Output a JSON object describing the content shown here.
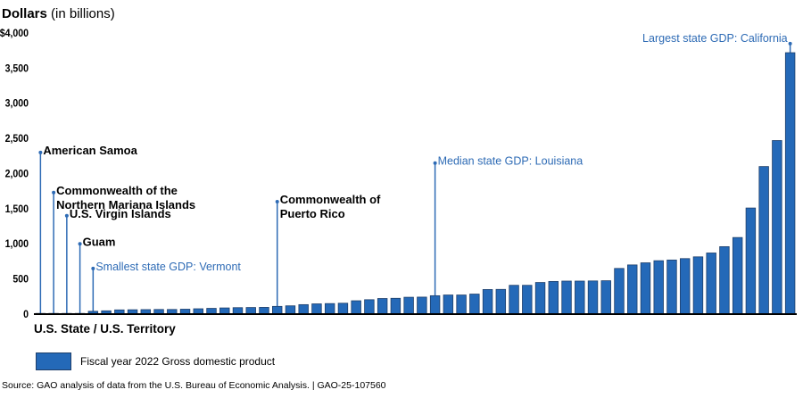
{
  "chart_data": {
    "type": "bar",
    "title_bold": "Dollars",
    "title_rest": " (in billions)",
    "xlabel": "U.S. State / U.S. Territory",
    "ylabel": "Dollars (in billions)",
    "ylim": [
      0,
      4000
    ],
    "yticks": [
      {
        "value": 4000,
        "label": "$4,000"
      },
      {
        "value": 3500,
        "label": "3,500"
      },
      {
        "value": 3000,
        "label": "3,000"
      },
      {
        "value": 2500,
        "label": "2,500"
      },
      {
        "value": 2000,
        "label": "2,000"
      },
      {
        "value": 1500,
        "label": "1,500"
      },
      {
        "value": 1000,
        "label": "1,000"
      },
      {
        "value": 500,
        "label": "500"
      },
      {
        "value": 0,
        "label": "0"
      }
    ],
    "grid": false,
    "legend_position": "bottom-left",
    "series": [
      {
        "name": "Fiscal year 2022 Gross domestic product",
        "color": "#2469b8",
        "values": [
          1,
          1,
          4,
          6,
          40,
          47,
          60,
          62,
          64,
          66,
          66,
          70,
          76,
          82,
          88,
          92,
          94,
          96,
          110,
          118,
          135,
          146,
          150,
          155,
          190,
          205,
          222,
          225,
          240,
          242,
          262,
          272,
          272,
          285,
          350,
          352,
          410,
          410,
          450,
          465,
          470,
          470,
          472,
          475,
          650,
          700,
          730,
          760,
          770,
          790,
          815,
          870,
          960,
          1090,
          1510,
          2100,
          2470,
          3720
        ]
      }
    ],
    "annotations": [
      {
        "label": "American Samoa",
        "bar_index": 0,
        "line_top_value": 2300,
        "style": "territory"
      },
      {
        "label": "Commonwealth of the\nNorthern Mariana Islands",
        "bar_index": 1,
        "line_top_value": 1730,
        "style": "territory"
      },
      {
        "label": "U.S. Virgin Islands",
        "bar_index": 2,
        "line_top_value": 1400,
        "style": "territory"
      },
      {
        "label": "Guam",
        "bar_index": 3,
        "line_top_value": 1000,
        "style": "territory"
      },
      {
        "label": "Smallest state GDP: Vermont",
        "bar_index": 4,
        "line_top_value": 650,
        "style": "state"
      },
      {
        "label": "Commonwealth of\nPuerto Rico",
        "bar_index": 18,
        "line_top_value": 1600,
        "style": "territory"
      },
      {
        "label": "Median state GDP: Louisiana",
        "bar_index": 30,
        "line_top_value": 2150,
        "style": "state"
      },
      {
        "label": "Largest state GDP: California",
        "bar_index": 57,
        "line_top_value": 3850,
        "style": "state"
      }
    ]
  },
  "legend": {
    "label": "Fiscal year 2022 Gross domestic product"
  },
  "source": "Source: GAO analysis of data from the U.S. Bureau of Economic Analysis.  |  GAO-25-107560",
  "colors": {
    "bar": "#2469b8",
    "bar_border": "#1f3f6a",
    "annotation_state": "#2e6bb5",
    "annotation_territory": "#000000",
    "leader_line": "#2e6bb5"
  }
}
